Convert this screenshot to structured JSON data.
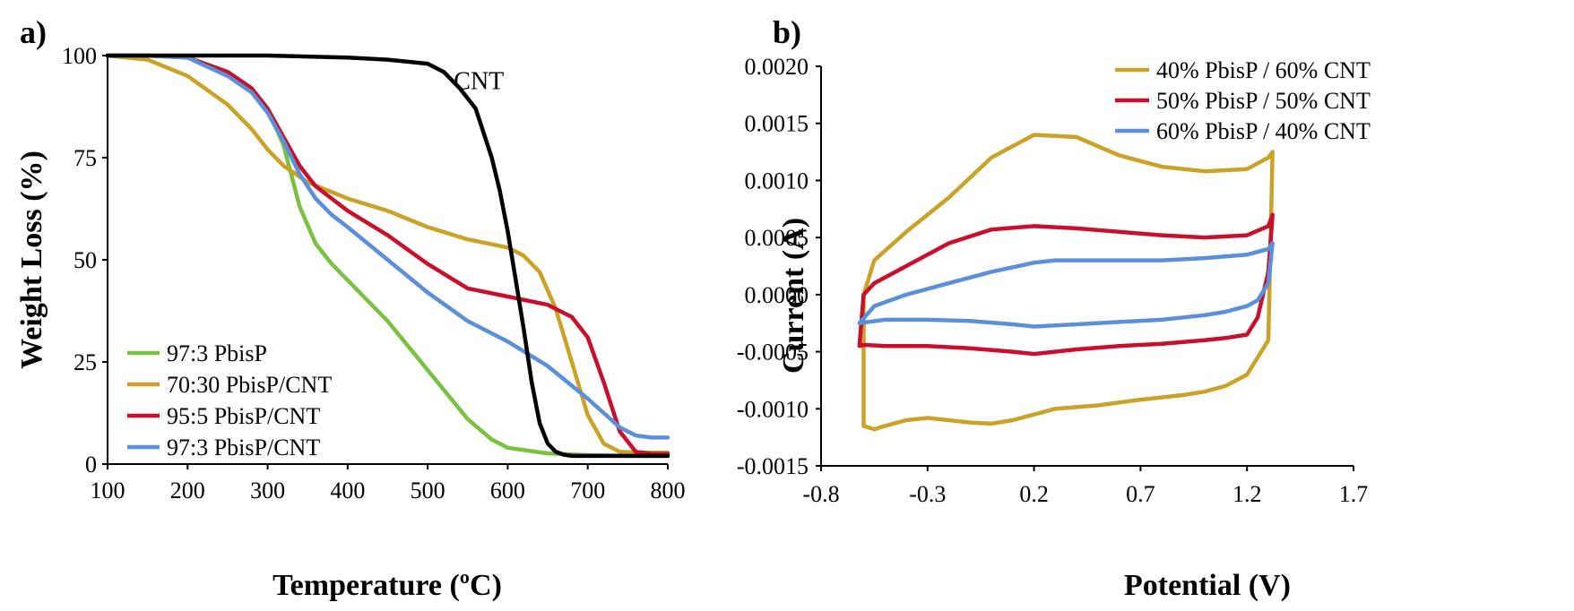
{
  "colors": {
    "green": "#7ac143",
    "gold": "#c9a227",
    "red": "#c8102e",
    "blue": "#5b8fd9",
    "black": "#000000"
  },
  "chart_data": [
    {
      "panel": "a)",
      "type": "line",
      "title": "",
      "xlabel": "Temperature (ºC)",
      "ylabel": "Weight Loss (%)",
      "xlim": [
        100,
        800
      ],
      "ylim": [
        0,
        100
      ],
      "xticks": [
        "100",
        "200",
        "300",
        "400",
        "500",
        "600",
        "700",
        "800"
      ],
      "yticks": [
        "0",
        "25",
        "50",
        "75",
        "100"
      ],
      "legend_position": "bottom-left",
      "annotations": [
        {
          "text": "CNT",
          "x": 620,
          "y": 94
        }
      ],
      "series": [
        {
          "name": "97:3 PbisP",
          "color": "green",
          "legend": true,
          "x": [
            100,
            150,
            200,
            250,
            280,
            300,
            320,
            340,
            360,
            380,
            400,
            450,
            500,
            550,
            580,
            600,
            650,
            700,
            750,
            800
          ],
          "y": [
            100,
            100,
            99.5,
            96,
            92,
            87,
            78,
            63,
            54,
            49,
            45,
            35,
            23,
            11,
            6,
            4,
            2.6,
            2.2,
            2,
            2
          ]
        },
        {
          "name": "70:30 PbisP/CNT",
          "color": "gold",
          "legend": true,
          "x": [
            100,
            150,
            200,
            250,
            280,
            300,
            320,
            350,
            400,
            450,
            500,
            550,
            600,
            620,
            640,
            660,
            680,
            700,
            720,
            740,
            760,
            800
          ],
          "y": [
            100,
            99,
            95,
            88,
            82,
            77,
            73,
            69,
            65,
            62,
            58,
            55,
            53,
            51,
            47,
            38,
            25,
            12,
            5,
            3,
            2.8,
            2.8
          ]
        },
        {
          "name": "95:5 PbisP/CNT",
          "color": "red",
          "legend": true,
          "x": [
            100,
            150,
            200,
            250,
            280,
            300,
            320,
            340,
            360,
            380,
            400,
            450,
            500,
            550,
            600,
            650,
            680,
            700,
            720,
            740,
            760,
            780,
            800
          ],
          "y": [
            100,
            100,
            99.5,
            96,
            92,
            87,
            80,
            73,
            68,
            65,
            62,
            56,
            49,
            43,
            41,
            39,
            36,
            31,
            20,
            8,
            3,
            2.5,
            2.5
          ]
        },
        {
          "name": "97:3 PbisP/CNT",
          "color": "blue",
          "legend": true,
          "x": [
            100,
            150,
            200,
            250,
            280,
            300,
            320,
            340,
            360,
            380,
            400,
            450,
            500,
            550,
            600,
            650,
            700,
            740,
            760,
            780,
            800
          ],
          "y": [
            100,
            100,
            99.5,
            95,
            91,
            86,
            79,
            71,
            65,
            61,
            58,
            50,
            42,
            35,
            30,
            24,
            16,
            9,
            7,
            6.5,
            6.5
          ]
        },
        {
          "name": "CNT",
          "color": "black",
          "legend": false,
          "x": [
            100,
            200,
            300,
            400,
            450,
            500,
            520,
            540,
            560,
            580,
            590,
            600,
            610,
            620,
            630,
            640,
            650,
            660,
            670,
            680,
            700,
            750,
            800
          ],
          "y": [
            100,
            100,
            100,
            99.5,
            99,
            98,
            96,
            92,
            87,
            75,
            67,
            57,
            45,
            33,
            20,
            10,
            5,
            3,
            2.3,
            2,
            2,
            2,
            2
          ]
        }
      ]
    },
    {
      "panel": "b)",
      "type": "line",
      "title": "",
      "xlabel": "Potential (V)",
      "ylabel": "Current (A)",
      "xlim": [
        -0.8,
        1.7
      ],
      "ylim": [
        -0.0015,
        0.002
      ],
      "xticks": [
        "-0.8",
        "-0.3",
        "0.2",
        "0.7",
        "1.2",
        "1.7"
      ],
      "yticks": [
        "-0.0015",
        "-0.0010",
        "-0.0005",
        "0.0000",
        "0.0005",
        "0.0010",
        "0.0015",
        "0.0020"
      ],
      "legend_position": "top-right",
      "series": [
        {
          "name": "40% PbisP / 60% CNT",
          "color": "gold",
          "legend": true,
          "x": [
            -0.6,
            -0.55,
            -0.5,
            -0.4,
            -0.3,
            -0.2,
            -0.1,
            0.0,
            0.1,
            0.2,
            0.3,
            0.5,
            0.7,
            0.9,
            1.0,
            1.1,
            1.2,
            1.3,
            1.32,
            1.3,
            1.25,
            1.2,
            1.1,
            1.0,
            0.8,
            0.6,
            0.4,
            0.2,
            0.0,
            -0.2,
            -0.4,
            -0.55,
            -0.6,
            -0.6
          ],
          "y": [
            -0.00115,
            -0.00118,
            -0.00115,
            -0.0011,
            -0.00108,
            -0.0011,
            -0.00112,
            -0.00113,
            -0.0011,
            -0.00105,
            -0.001,
            -0.00097,
            -0.00092,
            -0.00088,
            -0.00085,
            -0.0008,
            -0.0007,
            -0.0004,
            0.00125,
            0.0012,
            0.00115,
            0.0011,
            0.00109,
            0.00108,
            0.00112,
            0.00122,
            0.00138,
            0.0014,
            0.0012,
            0.00085,
            0.00055,
            0.0003,
            0.0,
            -0.00115
          ]
        },
        {
          "name": "50% PbisP / 50% CNT",
          "color": "red",
          "legend": true,
          "x": [
            -0.62,
            -0.6,
            -0.5,
            -0.3,
            -0.1,
            0.1,
            0.2,
            0.4,
            0.6,
            0.8,
            1.0,
            1.1,
            1.2,
            1.25,
            1.3,
            1.32,
            1.3,
            1.2,
            1.0,
            0.8,
            0.6,
            0.4,
            0.2,
            0.0,
            -0.2,
            -0.4,
            -0.55,
            -0.6,
            -0.62
          ],
          "y": [
            -0.00045,
            -0.00044,
            -0.00045,
            -0.00045,
            -0.00047,
            -0.0005,
            -0.00052,
            -0.00048,
            -0.00045,
            -0.00043,
            -0.0004,
            -0.00038,
            -0.00035,
            -0.0002,
            0.0002,
            0.0007,
            0.0006,
            0.00052,
            0.0005,
            0.00052,
            0.00055,
            0.00058,
            0.0006,
            0.00057,
            0.00045,
            0.00025,
            0.0001,
            0.0,
            -0.00045
          ]
        },
        {
          "name": "60% PbisP / 40% CNT",
          "color": "blue",
          "legend": true,
          "x": [
            -0.62,
            -0.5,
            -0.3,
            -0.1,
            0.1,
            0.2,
            0.4,
            0.6,
            0.8,
            1.0,
            1.1,
            1.2,
            1.25,
            1.3,
            1.32,
            1.3,
            1.2,
            1.0,
            0.8,
            0.6,
            0.4,
            0.3,
            0.2,
            0.0,
            -0.2,
            -0.4,
            -0.55,
            -0.62
          ],
          "y": [
            -0.00025,
            -0.00022,
            -0.00022,
            -0.00023,
            -0.00026,
            -0.00028,
            -0.00026,
            -0.00024,
            -0.00022,
            -0.00018,
            -0.00015,
            -0.0001,
            -5e-05,
            0.0001,
            0.00045,
            0.0004,
            0.00035,
            0.00032,
            0.0003,
            0.0003,
            0.0003,
            0.0003,
            0.00028,
            0.0002,
            0.0001,
            0.0,
            -0.0001,
            -0.00025
          ]
        }
      ]
    }
  ]
}
